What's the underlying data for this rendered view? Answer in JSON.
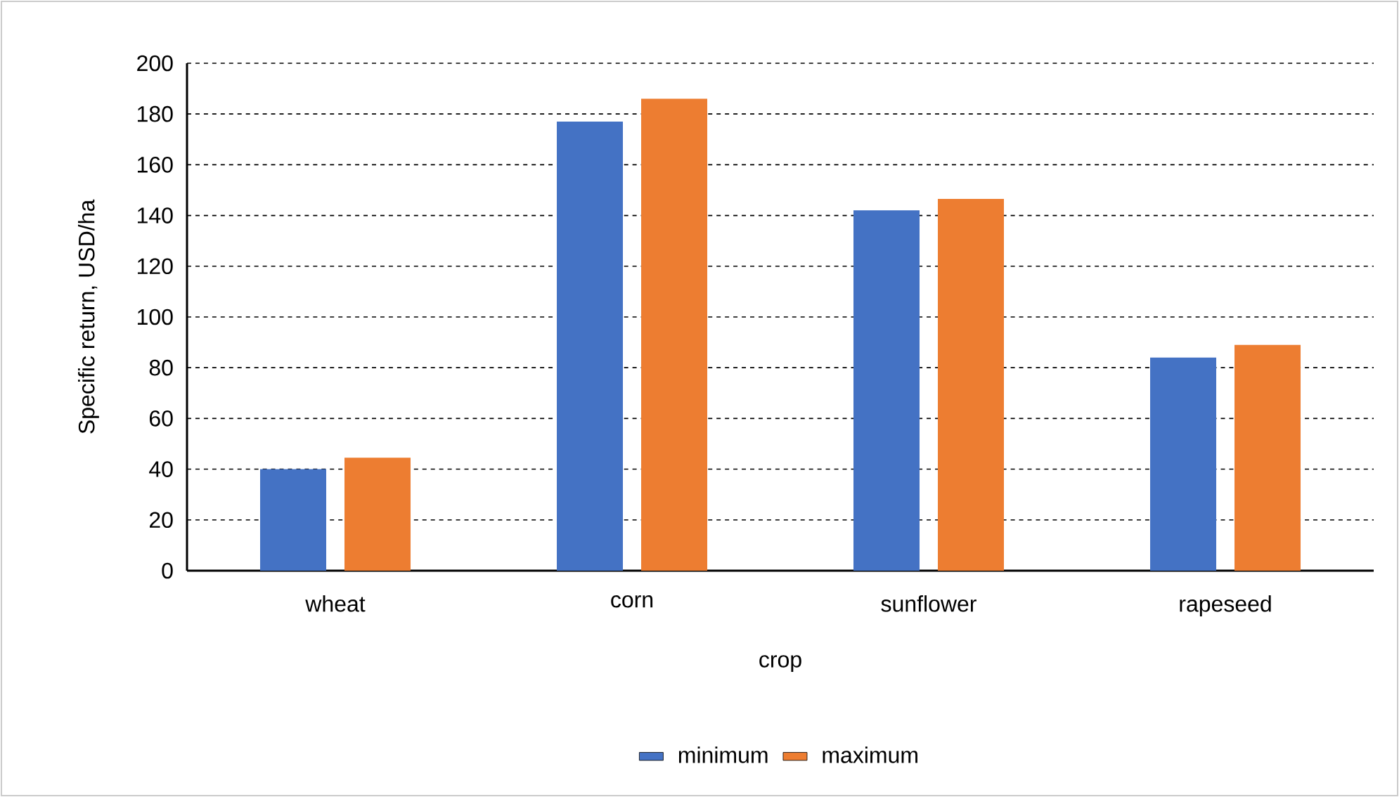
{
  "chart_data": {
    "type": "bar",
    "xlabel": "crop",
    "ylabel": "Specific return, USD/ha",
    "categories": [
      "wheat",
      "corn",
      "sunflower",
      "rapeseed"
    ],
    "series": [
      {
        "name": "minimum",
        "color": "#4472c4",
        "values": [
          40,
          177,
          142,
          84
        ]
      },
      {
        "name": "maximum",
        "color": "#ed7d31",
        "values": [
          44.5,
          186,
          146.5,
          89
        ]
      }
    ],
    "ylim": [
      0,
      200
    ],
    "yticks": [
      0,
      20,
      40,
      60,
      80,
      100,
      120,
      140,
      160,
      180,
      200
    ],
    "grid": "y",
    "legend": "bottom"
  }
}
